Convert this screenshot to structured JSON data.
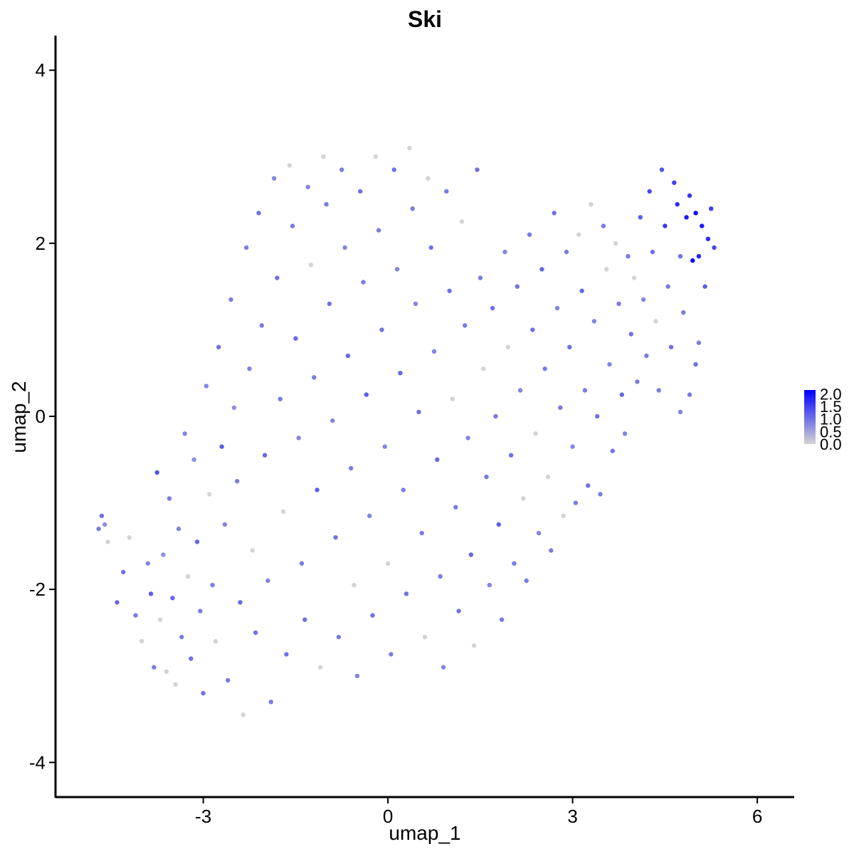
{
  "chart_data": {
    "type": "scatter",
    "title": "Ski",
    "xlabel": "umap_1",
    "ylabel": "umap_2",
    "xlim": [
      -5.4,
      6.6
    ],
    "ylim": [
      -4.4,
      4.4
    ],
    "xticks": [
      -3,
      0,
      3,
      6
    ],
    "xtick_labels": [
      "-3",
      "0",
      "3",
      "6"
    ],
    "yticks": [
      -4,
      -2,
      0,
      2,
      4
    ],
    "ytick_labels": [
      "-4",
      "-2",
      "0",
      "2",
      "4"
    ],
    "grid": false,
    "legend": {
      "placement": "right",
      "type": "colorbar",
      "range": [
        0,
        2.15
      ],
      "ticks": [
        0.0,
        0.5,
        1.0,
        1.5,
        2.0
      ],
      "tick_labels": [
        "0.0",
        "0.5",
        "1.0",
        "1.5",
        "2.0"
      ],
      "color_low": "#d3d3d3",
      "color_high": "#0000ff"
    },
    "cluster_description_note": "points sampled to approximate the visible distribution",
    "points": [
      {
        "x": -4.7,
        "y": -1.3,
        "v": 0.9
      },
      {
        "x": -4.65,
        "y": -1.15,
        "v": 1.0
      },
      {
        "x": -4.6,
        "y": -1.25,
        "v": 0.7
      },
      {
        "x": -4.55,
        "y": -1.45,
        "v": 0.0
      },
      {
        "x": -4.4,
        "y": -2.15,
        "v": 1.1
      },
      {
        "x": -4.3,
        "y": -1.8,
        "v": 1.0
      },
      {
        "x": -4.2,
        "y": -1.4,
        "v": 0.0
      },
      {
        "x": -4.1,
        "y": -2.3,
        "v": 0.9
      },
      {
        "x": -4.0,
        "y": -2.6,
        "v": 0.0
      },
      {
        "x": -3.9,
        "y": -1.7,
        "v": 0.8
      },
      {
        "x": -3.85,
        "y": -2.05,
        "v": 1.2
      },
      {
        "x": -3.8,
        "y": -2.9,
        "v": 0.9
      },
      {
        "x": -3.75,
        "y": -0.65,
        "v": 1.3
      },
      {
        "x": -3.7,
        "y": -2.35,
        "v": 0.0
      },
      {
        "x": -3.65,
        "y": -1.6,
        "v": 0.7
      },
      {
        "x": -3.6,
        "y": -2.95,
        "v": 0.0
      },
      {
        "x": -3.55,
        "y": -0.95,
        "v": 0.9
      },
      {
        "x": -3.5,
        "y": -2.1,
        "v": 1.1
      },
      {
        "x": -3.45,
        "y": -3.1,
        "v": 0.0
      },
      {
        "x": -3.4,
        "y": -1.3,
        "v": 0.8
      },
      {
        "x": -3.35,
        "y": -2.55,
        "v": 0.9
      },
      {
        "x": -3.3,
        "y": -0.2,
        "v": 0.8
      },
      {
        "x": -3.25,
        "y": -1.85,
        "v": 0.0
      },
      {
        "x": -3.2,
        "y": -2.8,
        "v": 1.0
      },
      {
        "x": -3.15,
        "y": -0.5,
        "v": 0.7
      },
      {
        "x": -3.1,
        "y": -1.45,
        "v": 1.1
      },
      {
        "x": -3.05,
        "y": -2.25,
        "v": 0.9
      },
      {
        "x": -3.0,
        "y": -3.2,
        "v": 1.0
      },
      {
        "x": -2.95,
        "y": 0.35,
        "v": 0.8
      },
      {
        "x": -2.9,
        "y": -0.9,
        "v": 0.0
      },
      {
        "x": -2.85,
        "y": -1.95,
        "v": 0.9
      },
      {
        "x": -2.8,
        "y": -2.6,
        "v": 0.0
      },
      {
        "x": -2.75,
        "y": 0.8,
        "v": 1.0
      },
      {
        "x": -2.7,
        "y": -0.35,
        "v": 1.2
      },
      {
        "x": -2.65,
        "y": -1.25,
        "v": 0.8
      },
      {
        "x": -2.6,
        "y": -3.05,
        "v": 0.9
      },
      {
        "x": -2.55,
        "y": 1.35,
        "v": 0.9
      },
      {
        "x": -2.5,
        "y": 0.1,
        "v": 0.7
      },
      {
        "x": -2.45,
        "y": -0.75,
        "v": 0.9
      },
      {
        "x": -2.4,
        "y": -2.15,
        "v": 1.1
      },
      {
        "x": -2.35,
        "y": -3.45,
        "v": 0.0
      },
      {
        "x": -2.3,
        "y": 1.95,
        "v": 0.9
      },
      {
        "x": -2.25,
        "y": 0.55,
        "v": 0.8
      },
      {
        "x": -2.2,
        "y": -1.55,
        "v": 0.0
      },
      {
        "x": -2.15,
        "y": -2.5,
        "v": 1.0
      },
      {
        "x": -2.1,
        "y": 2.35,
        "v": 1.0
      },
      {
        "x": -2.05,
        "y": 1.05,
        "v": 0.9
      },
      {
        "x": -2.0,
        "y": -0.45,
        "v": 1.1
      },
      {
        "x": -1.95,
        "y": -1.9,
        "v": 0.8
      },
      {
        "x": -1.9,
        "y": -3.3,
        "v": 0.9
      },
      {
        "x": -1.85,
        "y": 2.75,
        "v": 0.8
      },
      {
        "x": -1.8,
        "y": 1.6,
        "v": 1.0
      },
      {
        "x": -1.75,
        "y": 0.2,
        "v": 0.9
      },
      {
        "x": -1.7,
        "y": -1.1,
        "v": 0.0
      },
      {
        "x": -1.65,
        "y": -2.75,
        "v": 1.0
      },
      {
        "x": -1.6,
        "y": 2.9,
        "v": 0.0
      },
      {
        "x": -1.55,
        "y": 2.2,
        "v": 0.9
      },
      {
        "x": -1.5,
        "y": 0.9,
        "v": 1.1
      },
      {
        "x": -1.45,
        "y": -0.25,
        "v": 0.8
      },
      {
        "x": -1.4,
        "y": -1.7,
        "v": 0.9
      },
      {
        "x": -1.35,
        "y": -2.35,
        "v": 1.0
      },
      {
        "x": -1.3,
        "y": 2.65,
        "v": 0.8
      },
      {
        "x": -1.25,
        "y": 1.75,
        "v": 0.0
      },
      {
        "x": -1.2,
        "y": 0.45,
        "v": 0.9
      },
      {
        "x": -1.15,
        "y": -0.85,
        "v": 1.2
      },
      {
        "x": -1.1,
        "y": -2.9,
        "v": 0.0
      },
      {
        "x": -1.05,
        "y": 3.0,
        "v": 0.0
      },
      {
        "x": -1.0,
        "y": 2.45,
        "v": 0.9
      },
      {
        "x": -0.95,
        "y": 1.3,
        "v": 1.0
      },
      {
        "x": -0.9,
        "y": -0.05,
        "v": 0.8
      },
      {
        "x": -0.85,
        "y": -1.4,
        "v": 1.0
      },
      {
        "x": -0.8,
        "y": -2.55,
        "v": 0.9
      },
      {
        "x": -0.75,
        "y": 2.85,
        "v": 0.9
      },
      {
        "x": -0.7,
        "y": 1.95,
        "v": 0.8
      },
      {
        "x": -0.65,
        "y": 0.7,
        "v": 1.1
      },
      {
        "x": -0.6,
        "y": -0.6,
        "v": 0.9
      },
      {
        "x": -0.55,
        "y": -1.95,
        "v": 0.0
      },
      {
        "x": -0.5,
        "y": -3.0,
        "v": 0.8
      },
      {
        "x": -0.45,
        "y": 2.6,
        "v": 1.0
      },
      {
        "x": -0.4,
        "y": 1.55,
        "v": 0.9
      },
      {
        "x": -0.35,
        "y": 0.25,
        "v": 1.2
      },
      {
        "x": -0.3,
        "y": -1.15,
        "v": 0.8
      },
      {
        "x": -0.25,
        "y": -2.3,
        "v": 1.0
      },
      {
        "x": -0.2,
        "y": 3.0,
        "v": 0.0
      },
      {
        "x": -0.15,
        "y": 2.15,
        "v": 0.9
      },
      {
        "x": -0.1,
        "y": 1.0,
        "v": 1.0
      },
      {
        "x": -0.05,
        "y": -0.35,
        "v": 0.8
      },
      {
        "x": 0.0,
        "y": -1.7,
        "v": 0.0
      },
      {
        "x": 0.05,
        "y": -2.75,
        "v": 0.9
      },
      {
        "x": 0.1,
        "y": 2.85,
        "v": 1.0
      },
      {
        "x": 0.15,
        "y": 1.7,
        "v": 0.8
      },
      {
        "x": 0.2,
        "y": 0.5,
        "v": 1.1
      },
      {
        "x": 0.25,
        "y": -0.85,
        "v": 0.9
      },
      {
        "x": 0.3,
        "y": -2.05,
        "v": 1.0
      },
      {
        "x": 0.35,
        "y": 3.1,
        "v": 0.0
      },
      {
        "x": 0.4,
        "y": 2.4,
        "v": 0.9
      },
      {
        "x": 0.45,
        "y": 1.3,
        "v": 0.8
      },
      {
        "x": 0.5,
        "y": 0.05,
        "v": 1.0
      },
      {
        "x": 0.55,
        "y": -1.35,
        "v": 0.9
      },
      {
        "x": 0.6,
        "y": -2.55,
        "v": 0.0
      },
      {
        "x": 0.65,
        "y": 2.75,
        "v": 0.0
      },
      {
        "x": 0.7,
        "y": 1.95,
        "v": 1.0
      },
      {
        "x": 0.75,
        "y": 0.75,
        "v": 0.8
      },
      {
        "x": 0.8,
        "y": -0.5,
        "v": 1.1
      },
      {
        "x": 0.85,
        "y": -1.85,
        "v": 0.9
      },
      {
        "x": 0.9,
        "y": -2.9,
        "v": 0.8
      },
      {
        "x": 0.95,
        "y": 2.6,
        "v": 0.9
      },
      {
        "x": 1.0,
        "y": 1.45,
        "v": 1.0
      },
      {
        "x": 1.05,
        "y": 0.2,
        "v": 0.0
      },
      {
        "x": 1.1,
        "y": -1.05,
        "v": 0.9
      },
      {
        "x": 1.15,
        "y": -2.25,
        "v": 1.0
      },
      {
        "x": 1.2,
        "y": 2.25,
        "v": 0.0
      },
      {
        "x": 1.25,
        "y": 1.05,
        "v": 0.9
      },
      {
        "x": 1.3,
        "y": -0.25,
        "v": 0.8
      },
      {
        "x": 1.35,
        "y": -1.6,
        "v": 1.1
      },
      {
        "x": 1.4,
        "y": -2.65,
        "v": 0.0
      },
      {
        "x": 1.45,
        "y": 2.85,
        "v": 1.0
      },
      {
        "x": 1.5,
        "y": 1.6,
        "v": 0.9
      },
      {
        "x": 1.55,
        "y": 0.55,
        "v": 0.0
      },
      {
        "x": 1.6,
        "y": -0.7,
        "v": 0.9
      },
      {
        "x": 1.65,
        "y": -1.95,
        "v": 0.8
      },
      {
        "x": 1.7,
        "y": 1.25,
        "v": 1.0
      },
      {
        "x": 1.75,
        "y": 0.0,
        "v": 0.9
      },
      {
        "x": 1.8,
        "y": -1.25,
        "v": 1.2
      },
      {
        "x": 1.85,
        "y": -2.35,
        "v": 0.9
      },
      {
        "x": 1.9,
        "y": 1.9,
        "v": 0.8
      },
      {
        "x": 1.95,
        "y": 0.8,
        "v": 0.0
      },
      {
        "x": 2.0,
        "y": -0.45,
        "v": 1.0
      },
      {
        "x": 2.05,
        "y": -1.7,
        "v": 0.9
      },
      {
        "x": 2.1,
        "y": 1.5,
        "v": 1.0
      },
      {
        "x": 2.15,
        "y": 0.3,
        "v": 0.8
      },
      {
        "x": 2.2,
        "y": -0.95,
        "v": 0.0
      },
      {
        "x": 2.25,
        "y": -1.9,
        "v": 0.9
      },
      {
        "x": 2.3,
        "y": 2.1,
        "v": 0.9
      },
      {
        "x": 2.35,
        "y": 1.0,
        "v": 1.0
      },
      {
        "x": 2.4,
        "y": -0.2,
        "v": 0.0
      },
      {
        "x": 2.45,
        "y": -1.35,
        "v": 0.8
      },
      {
        "x": 2.5,
        "y": 1.7,
        "v": 1.1
      },
      {
        "x": 2.55,
        "y": 0.55,
        "v": 0.9
      },
      {
        "x": 2.6,
        "y": -0.7,
        "v": 0.0
      },
      {
        "x": 2.65,
        "y": -1.55,
        "v": 0.9
      },
      {
        "x": 2.7,
        "y": 2.35,
        "v": 1.0
      },
      {
        "x": 2.75,
        "y": 1.25,
        "v": 0.8
      },
      {
        "x": 2.8,
        "y": 0.1,
        "v": 0.9
      },
      {
        "x": 2.85,
        "y": -1.15,
        "v": 0.0
      },
      {
        "x": 2.9,
        "y": 1.9,
        "v": 0.9
      },
      {
        "x": 2.95,
        "y": 0.8,
        "v": 1.0
      },
      {
        "x": 3.0,
        "y": -0.35,
        "v": 0.8
      },
      {
        "x": 3.05,
        "y": -1.0,
        "v": 0.9
      },
      {
        "x": 3.1,
        "y": 2.1,
        "v": 0.0
      },
      {
        "x": 3.15,
        "y": 1.45,
        "v": 1.1
      },
      {
        "x": 3.2,
        "y": 0.3,
        "v": 0.9
      },
      {
        "x": 3.25,
        "y": -0.8,
        "v": 1.0
      },
      {
        "x": 3.3,
        "y": 2.45,
        "v": 0.0
      },
      {
        "x": 3.35,
        "y": 1.1,
        "v": 0.8
      },
      {
        "x": 3.4,
        "y": 0.0,
        "v": 1.0
      },
      {
        "x": 3.45,
        "y": -0.9,
        "v": 0.9
      },
      {
        "x": 3.5,
        "y": 2.2,
        "v": 0.9
      },
      {
        "x": 3.55,
        "y": 1.7,
        "v": 0.0
      },
      {
        "x": 3.6,
        "y": 0.6,
        "v": 0.8
      },
      {
        "x": 3.65,
        "y": -0.4,
        "v": 1.0
      },
      {
        "x": 3.7,
        "y": 2.0,
        "v": 0.0
      },
      {
        "x": 3.75,
        "y": 1.3,
        "v": 0.9
      },
      {
        "x": 3.8,
        "y": 0.25,
        "v": 1.1
      },
      {
        "x": 3.85,
        "y": -0.2,
        "v": 0.8
      },
      {
        "x": 3.9,
        "y": 1.85,
        "v": 0.9
      },
      {
        "x": 3.95,
        "y": 0.95,
        "v": 1.0
      },
      {
        "x": 4.0,
        "y": 1.6,
        "v": 0.0
      },
      {
        "x": 4.05,
        "y": 0.4,
        "v": 0.9
      },
      {
        "x": 4.1,
        "y": 2.3,
        "v": 1.2
      },
      {
        "x": 4.15,
        "y": 1.35,
        "v": 0.8
      },
      {
        "x": 4.2,
        "y": 0.7,
        "v": 0.9
      },
      {
        "x": 4.25,
        "y": 2.6,
        "v": 1.4
      },
      {
        "x": 4.3,
        "y": 1.9,
        "v": 1.0
      },
      {
        "x": 4.35,
        "y": 1.1,
        "v": 0.0
      },
      {
        "x": 4.4,
        "y": 0.3,
        "v": 0.9
      },
      {
        "x": 4.45,
        "y": 2.85,
        "v": 1.3
      },
      {
        "x": 4.5,
        "y": 2.2,
        "v": 1.6
      },
      {
        "x": 4.55,
        "y": 1.5,
        "v": 0.9
      },
      {
        "x": 4.6,
        "y": 0.8,
        "v": 1.0
      },
      {
        "x": 4.65,
        "y": 2.7,
        "v": 1.5
      },
      {
        "x": 4.7,
        "y": 2.45,
        "v": 1.7
      },
      {
        "x": 4.75,
        "y": 1.85,
        "v": 1.0
      },
      {
        "x": 4.8,
        "y": 1.2,
        "v": 0.9
      },
      {
        "x": 4.85,
        "y": 2.3,
        "v": 1.9
      },
      {
        "x": 4.9,
        "y": 2.55,
        "v": 1.6
      },
      {
        "x": 4.95,
        "y": 1.8,
        "v": 2.1
      },
      {
        "x": 5.0,
        "y": 2.35,
        "v": 2.0
      },
      {
        "x": 5.05,
        "y": 1.85,
        "v": 1.8
      },
      {
        "x": 5.1,
        "y": 2.2,
        "v": 1.9
      },
      {
        "x": 5.15,
        "y": 1.5,
        "v": 1.2
      },
      {
        "x": 5.2,
        "y": 2.05,
        "v": 1.7
      },
      {
        "x": 5.25,
        "y": 2.4,
        "v": 1.5
      },
      {
        "x": 5.3,
        "y": 1.95,
        "v": 1.4
      },
      {
        "x": 5.05,
        "y": 0.85,
        "v": 0.9
      },
      {
        "x": 5.0,
        "y": 0.6,
        "v": 1.0
      },
      {
        "x": 4.9,
        "y": 0.25,
        "v": 0.9
      },
      {
        "x": 4.75,
        "y": 0.05,
        "v": 0.8
      }
    ]
  }
}
